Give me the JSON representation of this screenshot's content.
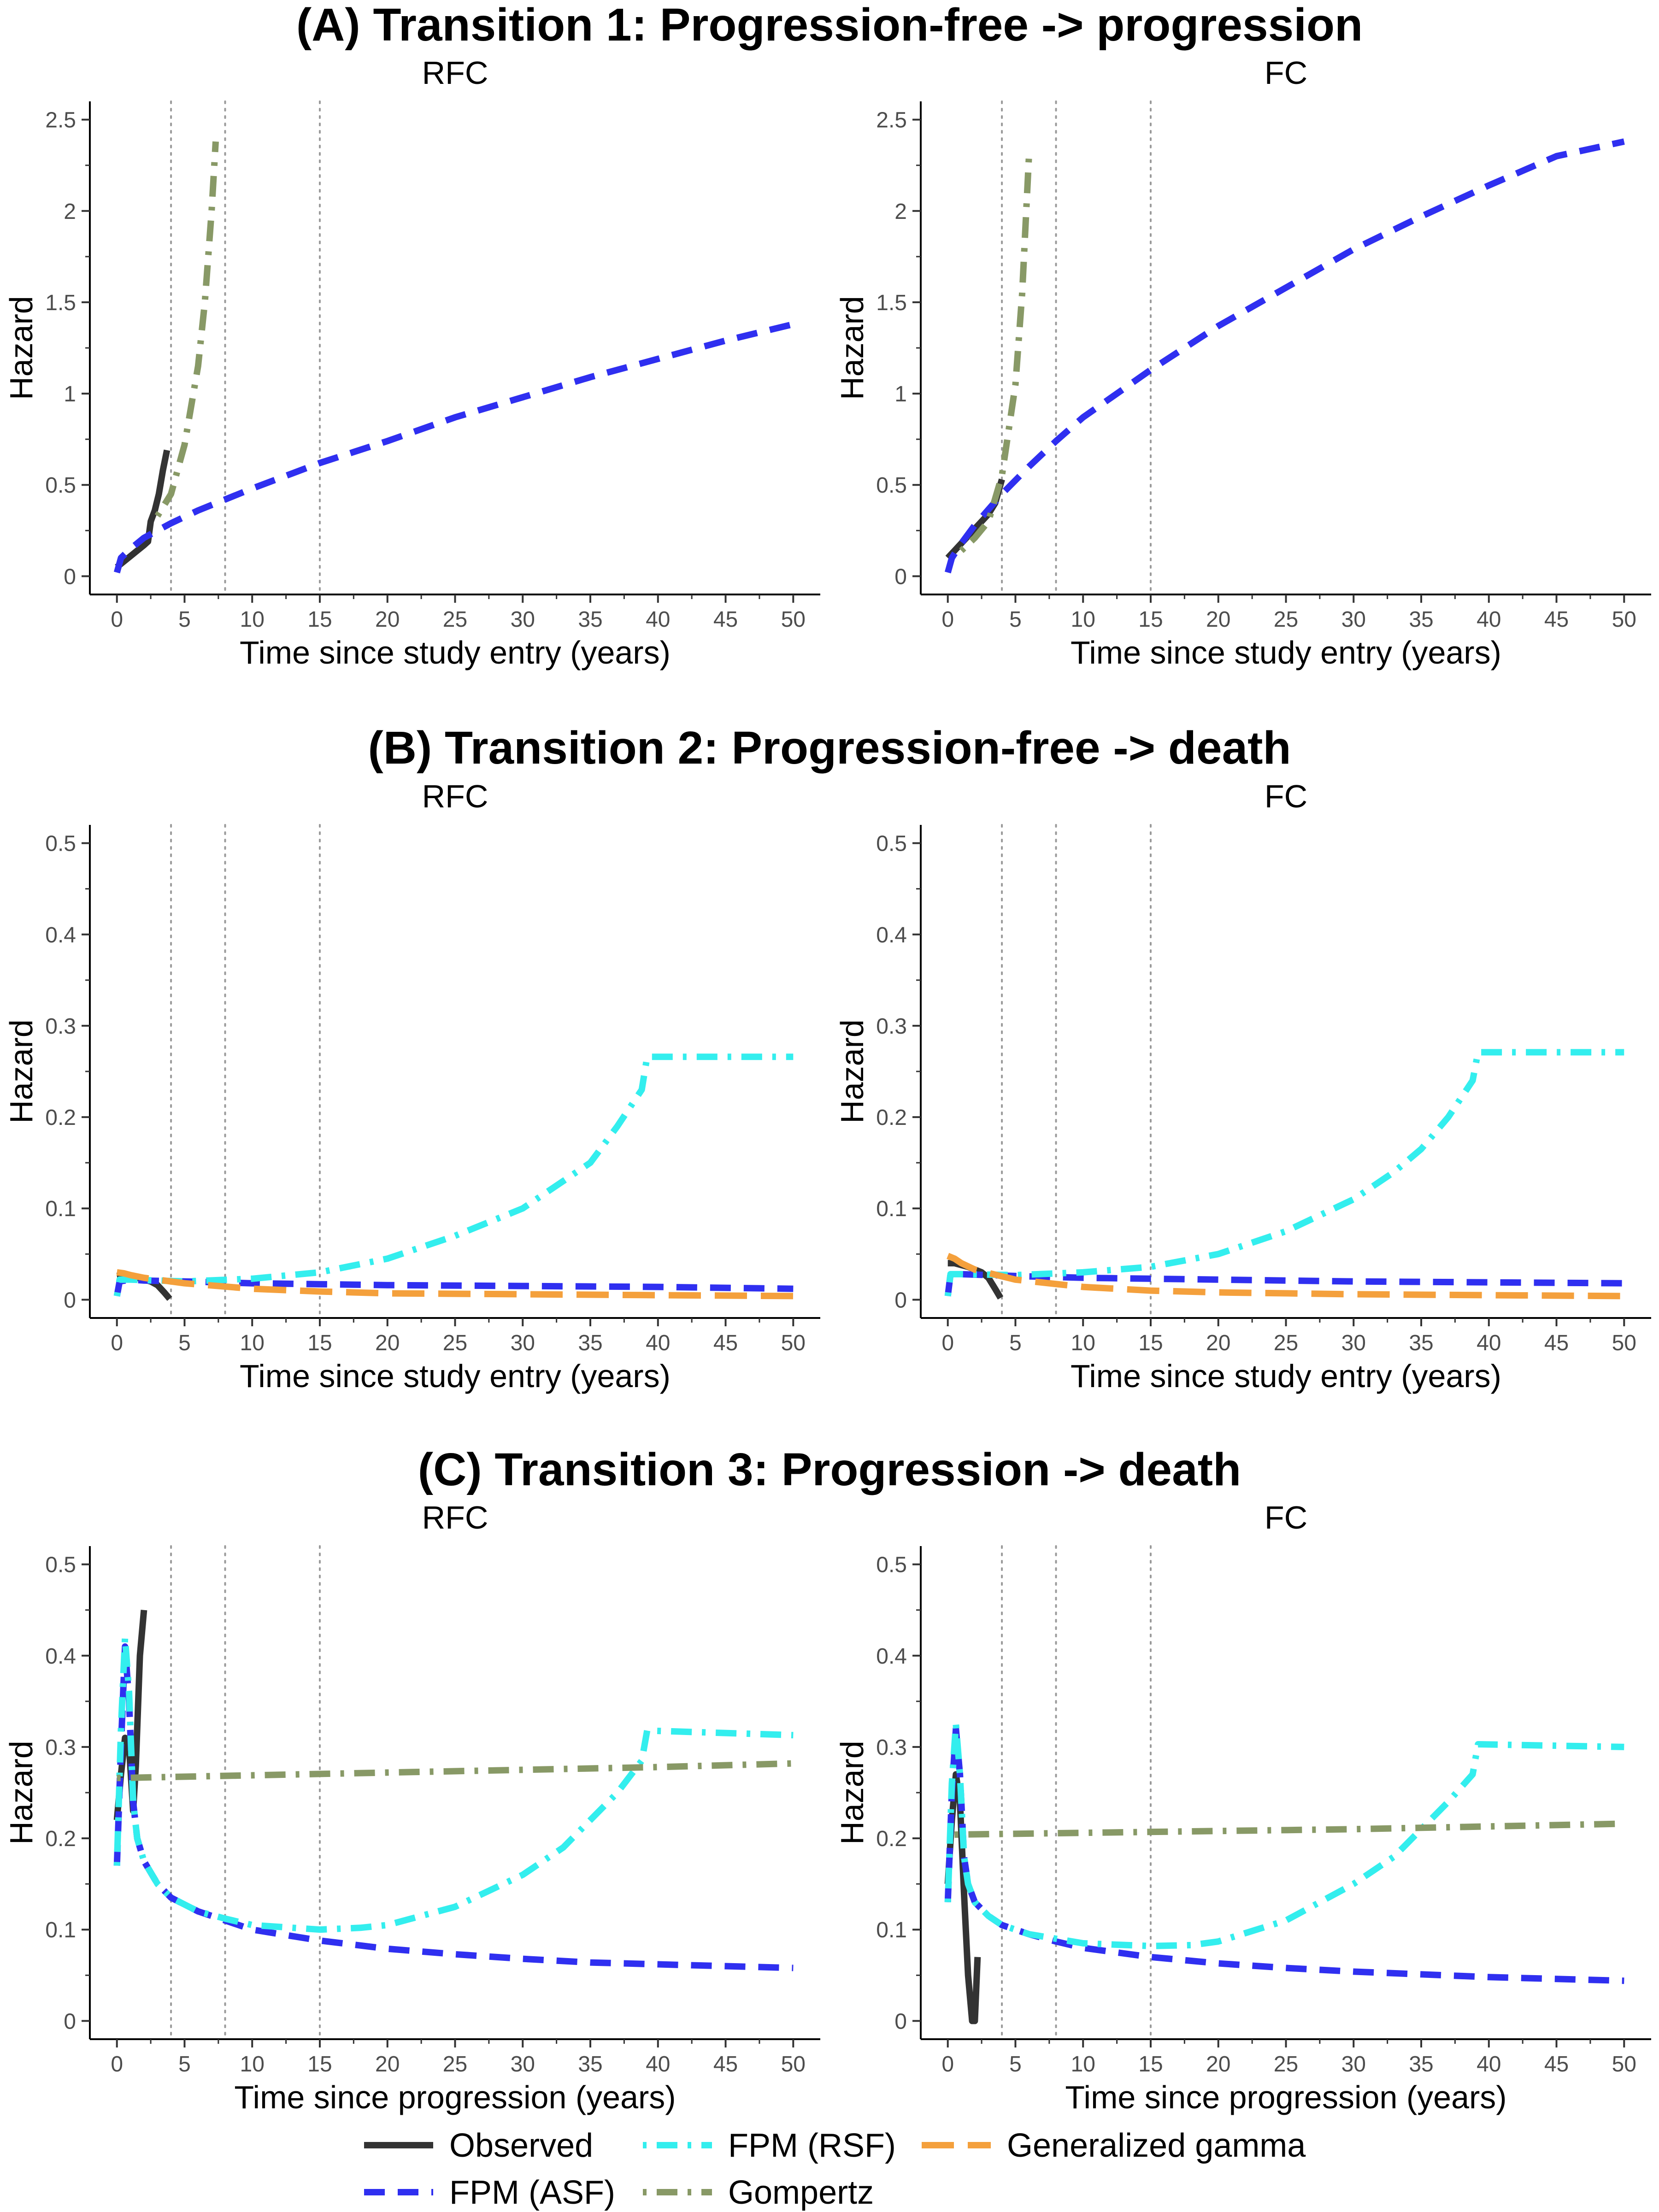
{
  "legend": [
    {
      "name": "Observed",
      "color": "#333333",
      "dash": "solid"
    },
    {
      "name": "FPM (ASF)",
      "color": "#2f2ff0",
      "dash": "dashed"
    },
    {
      "name": "FPM (RSF)",
      "color": "#33eeee",
      "dash": "dotdash"
    },
    {
      "name": "Gompertz",
      "color": "#889966",
      "dash": "dotdash"
    },
    {
      "name": "Generalized gamma",
      "color": "#f4a03c",
      "dash": "longdash"
    }
  ],
  "chart_data": [
    {
      "type": "line",
      "row": "A",
      "row_title": "(A) Transition 1: Progression-free -> progression",
      "title": "RFC",
      "xlabel": "Time since study entry  (years)",
      "ylabel": "Hazard",
      "xlim": [
        0,
        50
      ],
      "ylim": [
        0,
        2.5
      ],
      "xticks": [
        0,
        5,
        10,
        15,
        20,
        25,
        30,
        35,
        40,
        45,
        50
      ],
      "yticks": [
        0,
        0.5,
        1,
        1.5,
        2,
        2.5
      ],
      "ytick_labels": [
        "0",
        "0.5",
        "1",
        "1.5",
        "2",
        "2.5"
      ],
      "vlines": [
        4,
        8,
        15
      ],
      "series": [
        {
          "name": "Observed",
          "x": [
            0,
            0.5,
            1,
            1.5,
            2,
            2.3,
            2.5,
            2.8,
            3.1,
            3.4,
            3.7
          ],
          "y": [
            0.05,
            0.08,
            0.11,
            0.14,
            0.17,
            0.19,
            0.3,
            0.36,
            0.45,
            0.58,
            0.69
          ]
        },
        {
          "name": "FPM (ASF)",
          "x": [
            0,
            0.3,
            1,
            2,
            4,
            6,
            8,
            10,
            15,
            20,
            25,
            30,
            35,
            40,
            45,
            50
          ],
          "y": [
            0.02,
            0.1,
            0.15,
            0.21,
            0.29,
            0.36,
            0.42,
            0.48,
            0.62,
            0.74,
            0.87,
            0.98,
            1.09,
            1.19,
            1.29,
            1.38
          ]
        },
        {
          "name": "Gompertz",
          "x": [
            3,
            4,
            5,
            6,
            6.5,
            7,
            7.3
          ],
          "y": [
            0.33,
            0.45,
            0.72,
            1.15,
            1.5,
            2.0,
            2.38
          ]
        }
      ]
    },
    {
      "type": "line",
      "row": "A",
      "title": "FC",
      "xlabel": "Time since study entry  (years)",
      "ylabel": "Hazard",
      "xlim": [
        0,
        50
      ],
      "ylim": [
        0,
        2.5
      ],
      "xticks": [
        0,
        5,
        10,
        15,
        20,
        25,
        30,
        35,
        40,
        45,
        50
      ],
      "yticks": [
        0,
        0.5,
        1,
        1.5,
        2,
        2.5
      ],
      "ytick_labels": [
        "0",
        "0.5",
        "1",
        "1.5",
        "2",
        "2.5"
      ],
      "vlines": [
        4,
        8,
        15
      ],
      "series": [
        {
          "name": "Observed",
          "x": [
            0,
            0.5,
            1,
            1.5,
            2,
            2.5,
            3,
            3.5,
            4
          ],
          "y": [
            0.1,
            0.14,
            0.18,
            0.22,
            0.26,
            0.3,
            0.34,
            0.4,
            0.53
          ]
        },
        {
          "name": "FPM (ASF)",
          "x": [
            0,
            0.3,
            1,
            2,
            4,
            6,
            8,
            10,
            15,
            20,
            25,
            30,
            35,
            40,
            45,
            50
          ],
          "y": [
            0.02,
            0.1,
            0.18,
            0.28,
            0.45,
            0.6,
            0.74,
            0.87,
            1.13,
            1.37,
            1.58,
            1.79,
            1.97,
            2.14,
            2.3,
            2.38
          ]
        },
        {
          "name": "Gompertz",
          "x": [
            1,
            2,
            3,
            4,
            5,
            5.5,
            6
          ],
          "y": [
            0.14,
            0.21,
            0.3,
            0.55,
            1.05,
            1.55,
            2.3
          ]
        }
      ]
    },
    {
      "type": "line",
      "row": "B",
      "row_title": "(B) Transition 2: Progression-free -> death",
      "title": "RFC",
      "xlabel": "Time since study entry  (years)",
      "ylabel": "Hazard",
      "xlim": [
        0,
        50
      ],
      "ylim": [
        0,
        0.5
      ],
      "xticks": [
        0,
        5,
        10,
        15,
        20,
        25,
        30,
        35,
        40,
        45,
        50
      ],
      "yticks": [
        0,
        0.1,
        0.2,
        0.3,
        0.4,
        0.5
      ],
      "ytick_labels": [
        "0",
        "0.1",
        "0.2",
        "0.3",
        "0.4",
        "0.5"
      ],
      "vlines": [
        4,
        8,
        15
      ],
      "series": [
        {
          "name": "Observed",
          "x": [
            0,
            0.5,
            1,
            1.5,
            2,
            2.5,
            3,
            3.5,
            3.9
          ],
          "y": [
            0.026,
            0.027,
            0.026,
            0.024,
            0.022,
            0.02,
            0.016,
            0.008,
            0.001
          ]
        },
        {
          "name": "FPM (ASF)",
          "x": [
            0,
            0.2,
            1,
            2,
            5,
            10,
            15,
            20,
            30,
            40,
            50
          ],
          "y": [
            0.004,
            0.02,
            0.022,
            0.021,
            0.02,
            0.018,
            0.017,
            0.016,
            0.015,
            0.014,
            0.012
          ]
        },
        {
          "name": "FPM (RSF)",
          "x": [
            0,
            0.2,
            1,
            5,
            10,
            15,
            20,
            25,
            30,
            33,
            35,
            37,
            38.8,
            39.2,
            50
          ],
          "y": [
            0.004,
            0.022,
            0.022,
            0.02,
            0.023,
            0.03,
            0.045,
            0.07,
            0.1,
            0.13,
            0.15,
            0.19,
            0.23,
            0.266,
            0.266
          ]
        },
        {
          "name": "Generalized gamma",
          "x": [
            0,
            0.5,
            1,
            2,
            5,
            10,
            15,
            20,
            30,
            40,
            50
          ],
          "y": [
            0.03,
            0.029,
            0.027,
            0.024,
            0.018,
            0.012,
            0.009,
            0.007,
            0.006,
            0.005,
            0.004
          ]
        }
      ]
    },
    {
      "type": "line",
      "row": "B",
      "title": "FC",
      "xlabel": "Time since study entry  (years)",
      "ylabel": "Hazard",
      "xlim": [
        0,
        50
      ],
      "ylim": [
        0,
        0.5
      ],
      "xticks": [
        0,
        5,
        10,
        15,
        20,
        25,
        30,
        35,
        40,
        45,
        50
      ],
      "yticks": [
        0,
        0.1,
        0.2,
        0.3,
        0.4,
        0.5
      ],
      "ytick_labels": [
        "0",
        "0.1",
        "0.2",
        "0.3",
        "0.4",
        "0.5"
      ],
      "vlines": [
        4,
        8,
        15
      ],
      "series": [
        {
          "name": "Observed",
          "x": [
            0,
            0.5,
            1,
            1.5,
            2,
            2.5,
            3,
            3.5,
            3.9
          ],
          "y": [
            0.04,
            0.04,
            0.038,
            0.036,
            0.033,
            0.03,
            0.024,
            0.012,
            0.002
          ]
        },
        {
          "name": "FPM (ASF)",
          "x": [
            0,
            0.2,
            1,
            5,
            10,
            15,
            20,
            30,
            40,
            50
          ],
          "y": [
            0.004,
            0.028,
            0.028,
            0.026,
            0.024,
            0.023,
            0.022,
            0.02,
            0.019,
            0.018
          ]
        },
        {
          "name": "FPM (RSF)",
          "x": [
            0,
            0.2,
            1,
            5,
            10,
            15,
            20,
            25,
            30,
            33,
            35,
            37,
            38.8,
            39.2,
            50
          ],
          "y": [
            0.004,
            0.028,
            0.028,
            0.027,
            0.03,
            0.036,
            0.05,
            0.075,
            0.11,
            0.14,
            0.165,
            0.2,
            0.24,
            0.271,
            0.271
          ]
        },
        {
          "name": "Generalized gamma",
          "x": [
            0,
            0.5,
            1,
            2,
            5,
            10,
            15,
            20,
            30,
            40,
            50
          ],
          "y": [
            0.048,
            0.045,
            0.04,
            0.033,
            0.022,
            0.014,
            0.01,
            0.008,
            0.006,
            0.005,
            0.004
          ]
        }
      ]
    },
    {
      "type": "line",
      "row": "C",
      "row_title": "(C) Transition 3: Progression -> death",
      "title": "RFC",
      "xlabel": "Time since progression (years)",
      "ylabel": "Hazard",
      "xlim": [
        0,
        50
      ],
      "ylim": [
        0,
        0.5
      ],
      "xticks": [
        0,
        5,
        10,
        15,
        20,
        25,
        30,
        35,
        40,
        45,
        50
      ],
      "yticks": [
        0,
        0.1,
        0.2,
        0.3,
        0.4,
        0.5
      ],
      "ytick_labels": [
        "0",
        "0.1",
        "0.2",
        "0.3",
        "0.4",
        "0.5"
      ],
      "vlines": [
        4,
        8,
        15
      ],
      "series": [
        {
          "name": "Observed",
          "x": [
            0,
            0.3,
            0.6,
            0.9,
            1.2,
            1.4,
            1.7,
            2.0
          ],
          "y": [
            0.22,
            0.27,
            0.31,
            0.3,
            0.23,
            0.28,
            0.4,
            0.45
          ]
        },
        {
          "name": "FPM (ASF)",
          "x": [
            0,
            0.3,
            0.6,
            0.9,
            1.2,
            1.5,
            2,
            3,
            4,
            6,
            8,
            10,
            15,
            20,
            25,
            30,
            35,
            40,
            45,
            50
          ],
          "y": [
            0.17,
            0.3,
            0.41,
            0.35,
            0.24,
            0.2,
            0.175,
            0.15,
            0.135,
            0.12,
            0.11,
            0.1,
            0.088,
            0.079,
            0.073,
            0.068,
            0.064,
            0.062,
            0.06,
            0.058
          ]
        },
        {
          "name": "FPM (RSF)",
          "x": [
            0,
            0.3,
            0.6,
            0.9,
            1.2,
            1.5,
            2,
            3,
            4,
            6,
            8,
            10,
            15,
            18,
            20,
            25,
            30,
            33,
            35,
            37,
            38.8,
            39.2,
            50
          ],
          "y": [
            0.17,
            0.32,
            0.42,
            0.36,
            0.24,
            0.2,
            0.175,
            0.15,
            0.135,
            0.12,
            0.112,
            0.105,
            0.1,
            0.102,
            0.105,
            0.125,
            0.16,
            0.19,
            0.22,
            0.25,
            0.285,
            0.318,
            0.313
          ]
        },
        {
          "name": "Gompertz",
          "x": [
            0,
            10,
            20,
            30,
            40,
            50
          ],
          "y": [
            0.266,
            0.269,
            0.272,
            0.275,
            0.278,
            0.282
          ]
        }
      ]
    },
    {
      "type": "line",
      "row": "C",
      "title": "FC",
      "xlabel": "Time since progression (years)",
      "ylabel": "Hazard",
      "xlim": [
        0,
        50
      ],
      "ylim": [
        0,
        0.5
      ],
      "xticks": [
        0,
        5,
        10,
        15,
        20,
        25,
        30,
        35,
        40,
        45,
        50
      ],
      "yticks": [
        0,
        0.1,
        0.2,
        0.3,
        0.4,
        0.5
      ],
      "ytick_labels": [
        "0",
        "0.1",
        "0.2",
        "0.3",
        "0.4",
        "0.5"
      ],
      "vlines": [
        4,
        8,
        15
      ],
      "series": [
        {
          "name": "Observed",
          "x": [
            0,
            0.3,
            0.6,
            0.9,
            1.2,
            1.5,
            1.8,
            2.0,
            2.2
          ],
          "y": [
            0.15,
            0.22,
            0.27,
            0.24,
            0.14,
            0.05,
            0.0,
            0.0,
            0.07
          ]
        },
        {
          "name": "FPM (ASF)",
          "x": [
            0,
            0.3,
            0.6,
            0.9,
            1.2,
            1.5,
            2,
            3,
            4,
            6,
            8,
            10,
            15,
            20,
            25,
            30,
            35,
            40,
            45,
            50
          ],
          "y": [
            0.13,
            0.25,
            0.32,
            0.27,
            0.18,
            0.15,
            0.13,
            0.115,
            0.105,
            0.095,
            0.087,
            0.08,
            0.07,
            0.063,
            0.058,
            0.054,
            0.051,
            0.048,
            0.046,
            0.044
          ]
        },
        {
          "name": "FPM (RSF)",
          "x": [
            0,
            0.3,
            0.6,
            0.9,
            1.2,
            1.5,
            2,
            3,
            4,
            6,
            8,
            10,
            15,
            18,
            20,
            25,
            30,
            33,
            35,
            37,
            38.8,
            39.2,
            50
          ],
          "y": [
            0.13,
            0.26,
            0.325,
            0.27,
            0.18,
            0.15,
            0.13,
            0.115,
            0.105,
            0.095,
            0.09,
            0.085,
            0.082,
            0.083,
            0.087,
            0.11,
            0.15,
            0.18,
            0.21,
            0.24,
            0.27,
            0.303,
            0.3
          ]
        },
        {
          "name": "Gompertz",
          "x": [
            0.5,
            10,
            20,
            30,
            40,
            50
          ],
          "y": [
            0.204,
            0.206,
            0.208,
            0.21,
            0.213,
            0.216
          ]
        }
      ]
    }
  ]
}
